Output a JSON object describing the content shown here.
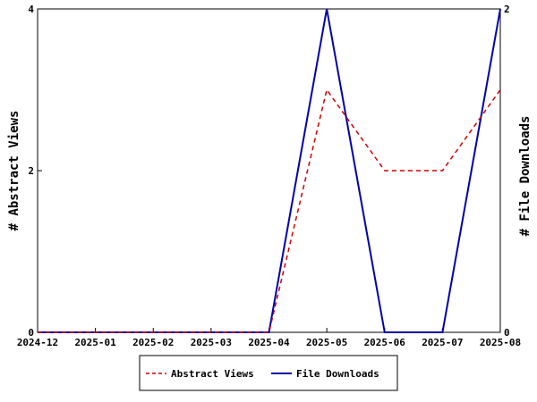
{
  "chart_data": {
    "type": "line",
    "title": "",
    "xlabel": "",
    "ylabel": "# Abstract Views",
    "y2label": "# File Downloads",
    "categories": [
      "2024-12",
      "2025-01",
      "2025-02",
      "2025-03",
      "2025-04",
      "2025-05",
      "2025-06",
      "2025-07",
      "2025-08"
    ],
    "ylim": [
      0,
      4
    ],
    "y2lim": [
      0,
      2
    ],
    "yticks": [
      "0",
      "2",
      "4"
    ],
    "y2ticks": [
      "0",
      "2"
    ],
    "grid": false,
    "legend_position": "bottom",
    "series": [
      {
        "name": "Abstract Views",
        "axis": "left",
        "style": "dashed",
        "color": "#cc0000",
        "values": [
          0,
          0,
          0,
          0,
          0,
          3,
          2,
          2,
          3
        ]
      },
      {
        "name": "File Downloads",
        "axis": "right",
        "style": "solid",
        "color": "#0000aa",
        "values": [
          0,
          0,
          0,
          0,
          0,
          2,
          0,
          0,
          2
        ]
      }
    ]
  }
}
